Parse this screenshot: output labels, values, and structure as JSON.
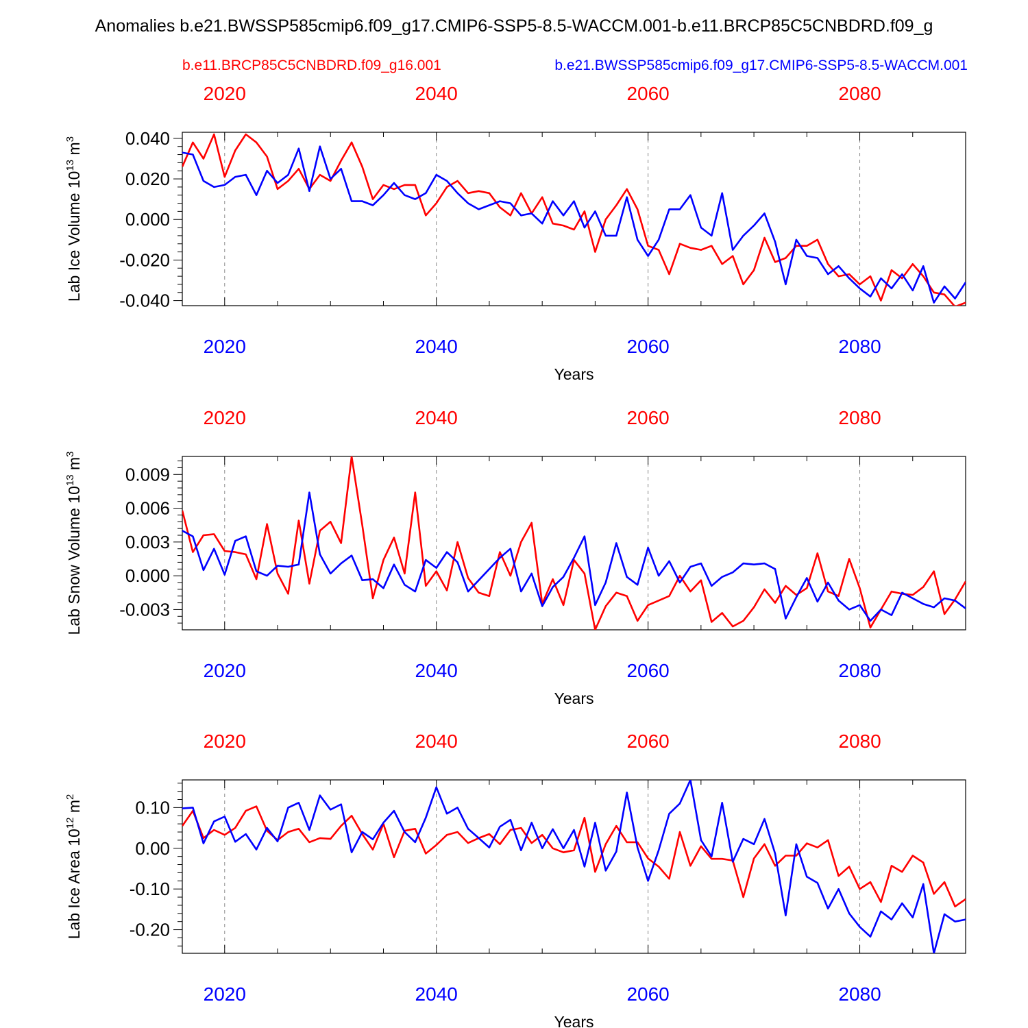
{
  "title": "Anomalies b.e21.BWSSP585cmip6.f09_g17.CMIP6-SSP5-8.5-WACCM.001-b.e11.BRCP85C5CNBDRD.f09_g",
  "legend": {
    "red_label": "b.e11.BRCP85C5CNBDRD.f09_g16.001",
    "blue_label": "b.e21.BWSSP585cmip6.f09_g17.CMIP6-SSP5-8.5-WACCM.001"
  },
  "colors": {
    "red": "#ff0000",
    "blue": "#0000ff",
    "axis": "#000000",
    "grid": "#888888"
  },
  "chart_data": [
    {
      "type": "line",
      "ylabel_main": "Lab Ice Volume 10",
      "ylabel_exp": "13",
      "ylabel_unit": "m",
      "ylabel_unit_exp": "3",
      "xlabel": "Years",
      "xlim": [
        2016,
        2090
      ],
      "ylim": [
        -0.0425,
        0.043
      ],
      "xticks": [
        2020,
        2040,
        2060,
        2080
      ],
      "xtick_labels": [
        "2020",
        "2040",
        "2060",
        "2080"
      ],
      "yticks": [
        -0.04,
        -0.02,
        0.0,
        0.02,
        0.04
      ],
      "ytick_labels": [
        "-0.040",
        "-0.020",
        "0.000",
        "0.020",
        "0.040"
      ],
      "x_start": 2016,
      "series": [
        {
          "name": "b.e11.BRCP85C5CNBDRD.f09_g16.001",
          "color": "red",
          "values": [
            0.026,
            0.038,
            0.03,
            0.042,
            0.021,
            0.034,
            0.042,
            0.038,
            0.031,
            0.015,
            0.019,
            0.025,
            0.015,
            0.022,
            0.019,
            0.029,
            0.038,
            0.026,
            0.01,
            0.017,
            0.015,
            0.017,
            0.017,
            0.002,
            0.008,
            0.016,
            0.019,
            0.013,
            0.014,
            0.013,
            0.006,
            0.002,
            0.013,
            0.003,
            0.011,
            -0.002,
            -0.003,
            -0.005,
            0.004,
            -0.016,
            0.0,
            0.007,
            0.015,
            0.005,
            -0.013,
            -0.015,
            -0.027,
            -0.012,
            -0.014,
            -0.015,
            -0.013,
            -0.022,
            -0.018,
            -0.032,
            -0.025,
            -0.009,
            -0.021,
            -0.019,
            -0.013,
            -0.013,
            -0.01,
            -0.022,
            -0.028,
            -0.027,
            -0.032,
            -0.028,
            -0.04,
            -0.025,
            -0.029,
            -0.022,
            -0.028,
            -0.036,
            -0.037,
            -0.043,
            -0.041
          ]
        },
        {
          "name": "b.e21.BWSSP585cmip6.f09_g17.CMIP6-SSP5-8.5-WACCM.001",
          "color": "blue",
          "values": [
            0.033,
            0.032,
            0.019,
            0.016,
            0.017,
            0.021,
            0.022,
            0.012,
            0.024,
            0.018,
            0.022,
            0.035,
            0.014,
            0.036,
            0.02,
            0.025,
            0.009,
            0.009,
            0.007,
            0.012,
            0.018,
            0.012,
            0.01,
            0.013,
            0.022,
            0.019,
            0.013,
            0.008,
            0.005,
            0.007,
            0.009,
            0.008,
            0.002,
            0.003,
            -0.002,
            0.009,
            0.002,
            0.009,
            -0.004,
            0.004,
            -0.008,
            -0.008,
            0.011,
            -0.01,
            -0.018,
            -0.01,
            0.005,
            0.005,
            0.012,
            -0.004,
            -0.008,
            0.013,
            -0.015,
            -0.008,
            -0.003,
            0.003,
            -0.011,
            -0.032,
            -0.01,
            -0.018,
            -0.019,
            -0.027,
            -0.023,
            -0.029,
            -0.034,
            -0.038,
            -0.029,
            -0.034,
            -0.027,
            -0.035,
            -0.023,
            -0.041,
            -0.033,
            -0.039,
            -0.031
          ]
        }
      ]
    },
    {
      "type": "line",
      "ylabel_main": "Lab Snow Volume 10",
      "ylabel_exp": "13",
      "ylabel_unit": "m",
      "ylabel_unit_exp": "3",
      "xlabel": "Years",
      "xlim": [
        2016,
        2090
      ],
      "ylim": [
        -0.0048,
        0.0106
      ],
      "xticks": [
        2020,
        2040,
        2060,
        2080
      ],
      "xtick_labels": [
        "2020",
        "2040",
        "2060",
        "2080"
      ],
      "yticks": [
        -0.003,
        0.0,
        0.003,
        0.006,
        0.009
      ],
      "ytick_labels": [
        "-0.003",
        "0.000",
        "0.003",
        "0.006",
        "0.009"
      ],
      "x_start": 2016,
      "series": [
        {
          "name": "b.e11.BRCP85C5CNBDRD.f09_g16.001",
          "color": "red",
          "values": [
            0.0058,
            0.0021,
            0.0036,
            0.0037,
            0.0022,
            0.0021,
            0.0019,
            -0.0003,
            0.0046,
            0.0002,
            -0.0016,
            0.0049,
            -0.0007,
            0.004,
            0.0048,
            0.0029,
            0.0106,
            0.0045,
            -0.002,
            0.0014,
            0.0034,
            0.0002,
            0.0074,
            -0.0009,
            0.0004,
            -0.0013,
            0.003,
            -0.0002,
            -0.0015,
            -0.0018,
            0.0021,
            0.0,
            0.003,
            0.0047,
            -0.0025,
            -0.0003,
            -0.0026,
            0.0014,
            0.0002,
            -0.0048,
            -0.0027,
            -0.0015,
            -0.0018,
            -0.004,
            -0.0026,
            -0.0022,
            -0.0018,
            0.0,
            -0.0014,
            -0.0004,
            -0.0041,
            -0.0033,
            -0.0045,
            -0.004,
            -0.0028,
            -0.0012,
            -0.0024,
            -0.0009,
            -0.0017,
            -0.0011,
            0.002,
            -0.0014,
            -0.0018,
            0.0015,
            -0.0011,
            -0.0046,
            -0.003,
            -0.0014,
            -0.0016,
            -0.0017,
            -0.001,
            0.0004,
            -0.0034,
            -0.0021,
            -0.0005
          ]
        },
        {
          "name": "b.e21.BWSSP585cmip6.f09_g17.CMIP6-SSP5-8.5-WACCM.001",
          "color": "blue",
          "values": [
            0.004,
            0.0035,
            0.0005,
            0.0024,
            0.0001,
            0.0031,
            0.0035,
            0.0004,
            0.0,
            0.0009,
            0.0008,
            0.001,
            0.0074,
            0.0019,
            0.0002,
            0.0011,
            0.0018,
            -0.0004,
            -0.0003,
            -0.0011,
            0.001,
            -0.0008,
            -0.0014,
            0.0014,
            0.0007,
            0.0021,
            0.0012,
            -0.0014,
            -0.0004,
            0.0006,
            0.0016,
            0.0024,
            -0.0014,
            0.0002,
            -0.0027,
            -0.001,
            -0.0001,
            0.0016,
            0.0035,
            -0.0026,
            -0.0006,
            0.0029,
            -0.0001,
            -0.0008,
            0.0025,
            0.0,
            0.0013,
            -0.0006,
            0.0008,
            0.0011,
            -0.0009,
            -0.0001,
            0.0003,
            0.0011,
            0.001,
            0.0011,
            0.0006,
            -0.0038,
            -0.0019,
            -0.0002,
            -0.0023,
            -0.0006,
            -0.0022,
            -0.003,
            -0.0026,
            -0.004,
            -0.003,
            -0.0035,
            -0.0015,
            -0.002,
            -0.0025,
            -0.0028,
            -0.002,
            -0.0022,
            -0.0029
          ]
        }
      ]
    },
    {
      "type": "line",
      "ylabel_main": "Lab Ice Area 10",
      "ylabel_exp": "12",
      "ylabel_unit": "m",
      "ylabel_unit_exp": "2",
      "xlabel": "Years",
      "xlim": [
        2016,
        2090
      ],
      "ylim": [
        -0.258,
        0.168
      ],
      "xticks": [
        2020,
        2040,
        2060,
        2080
      ],
      "xtick_labels": [
        "2020",
        "2040",
        "2060",
        "2080"
      ],
      "yticks": [
        -0.2,
        -0.1,
        0.0,
        0.1
      ],
      "ytick_labels": [
        "-0.20",
        "-0.10",
        "0.00",
        "0.10"
      ],
      "x_start": 2016,
      "series": [
        {
          "name": "b.e11.BRCP85C5CNBDRD.f09_g16.001",
          "color": "red",
          "values": [
            0.055,
            0.092,
            0.025,
            0.045,
            0.033,
            0.05,
            0.092,
            0.103,
            0.043,
            0.02,
            0.04,
            0.048,
            0.015,
            0.025,
            0.023,
            0.055,
            0.08,
            0.035,
            -0.003,
            0.06,
            -0.022,
            0.043,
            0.048,
            -0.013,
            0.008,
            0.033,
            0.04,
            0.013,
            0.025,
            0.035,
            0.01,
            0.045,
            0.05,
            0.013,
            0.033,
            0.0,
            -0.01,
            -0.005,
            0.075,
            -0.058,
            0.01,
            0.055,
            0.015,
            0.015,
            -0.025,
            -0.045,
            -0.075,
            0.04,
            -0.043,
            0.005,
            -0.026,
            -0.026,
            -0.03,
            -0.12,
            -0.025,
            0.01,
            -0.043,
            -0.018,
            -0.018,
            0.012,
            0.002,
            0.02,
            -0.068,
            -0.045,
            -0.1,
            -0.083,
            -0.132,
            -0.043,
            -0.058,
            -0.018,
            -0.035,
            -0.112,
            -0.083,
            -0.143,
            -0.125
          ]
        },
        {
          "name": "b.e21.BWSSP585cmip6.f09_g17.CMIP6-SSP5-8.5-WACCM.001",
          "color": "blue",
          "values": [
            0.098,
            0.1,
            0.012,
            0.066,
            0.078,
            0.016,
            0.035,
            -0.003,
            0.05,
            0.017,
            0.1,
            0.112,
            0.045,
            0.13,
            0.095,
            0.108,
            -0.01,
            0.04,
            0.022,
            0.063,
            0.092,
            0.04,
            0.015,
            0.075,
            0.15,
            0.085,
            0.1,
            0.048,
            0.025,
            0.002,
            0.053,
            0.07,
            -0.005,
            0.063,
            0.0,
            0.047,
            0.0,
            0.045,
            -0.045,
            0.063,
            -0.055,
            -0.008,
            0.137,
            0.002,
            -0.08,
            -0.005,
            0.085,
            0.11,
            0.168,
            0.02,
            -0.02,
            0.112,
            -0.033,
            0.023,
            0.01,
            0.072,
            -0.013,
            -0.165,
            0.01,
            -0.07,
            -0.085,
            -0.148,
            -0.1,
            -0.16,
            -0.193,
            -0.217,
            -0.155,
            -0.175,
            -0.135,
            -0.17,
            -0.088,
            -0.258,
            -0.162,
            -0.18,
            -0.175
          ]
        }
      ]
    }
  ]
}
